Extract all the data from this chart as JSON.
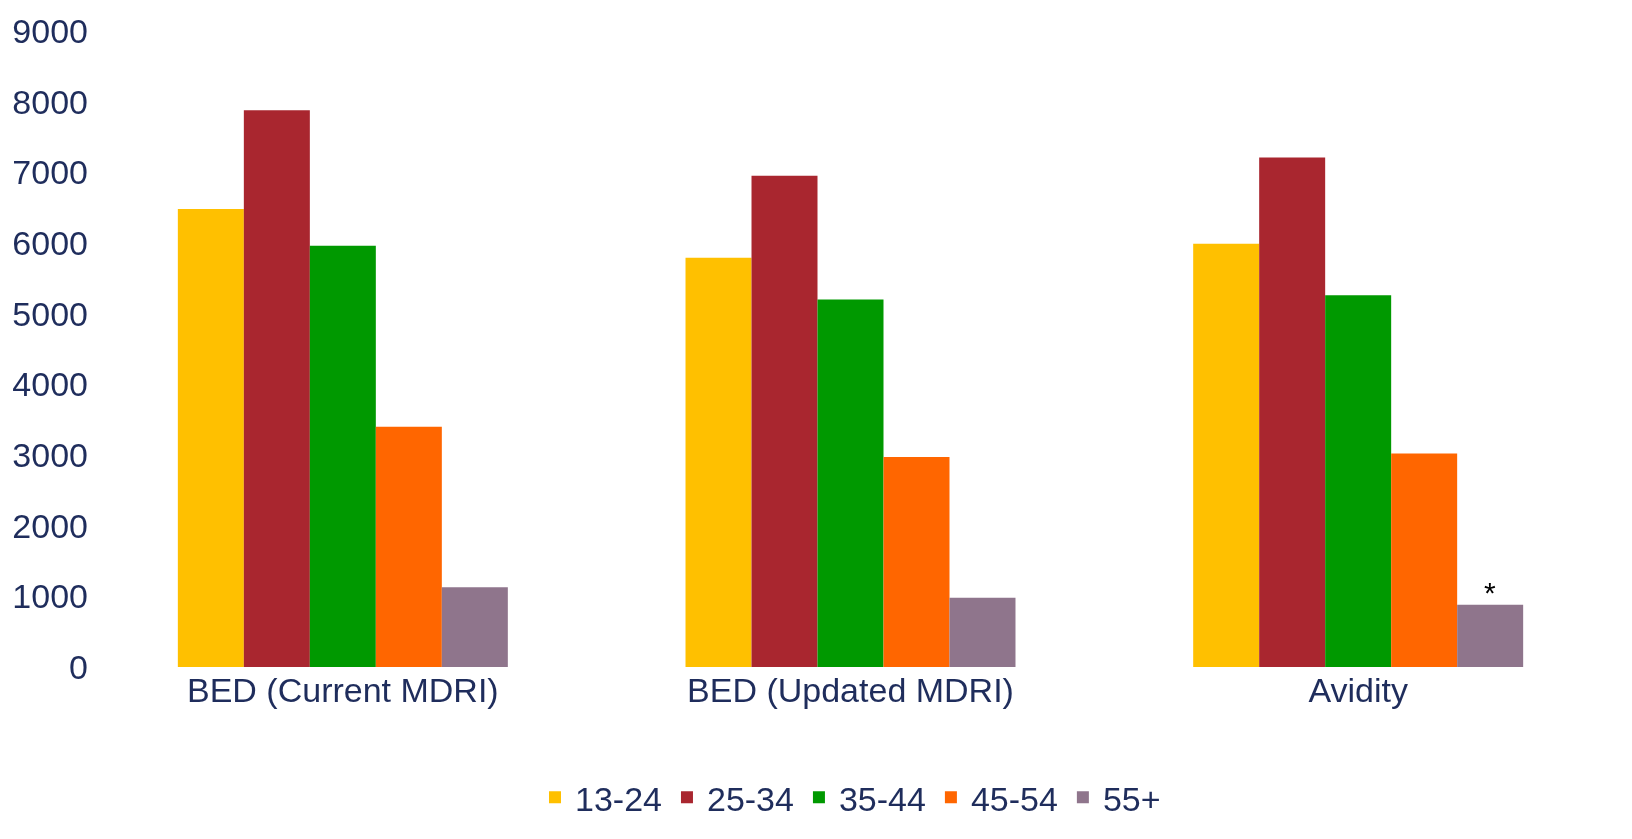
{
  "chart_data": {
    "type": "bar",
    "categories": [
      "BED (Current MDRI)",
      "BED (Updated MDRI)",
      "Avidity"
    ],
    "series": [
      {
        "name": "13-24",
        "color": "#ffc000",
        "values": [
          6480,
          5790,
          5990
        ]
      },
      {
        "name": "25-34",
        "color": "#a9262f",
        "values": [
          7880,
          6950,
          7210
        ]
      },
      {
        "name": "35-44",
        "color": "#009900",
        "values": [
          5960,
          5200,
          5260
        ]
      },
      {
        "name": "45-54",
        "color": "#ff6600",
        "values": [
          3400,
          2970,
          3020
        ]
      },
      {
        "name": "55+",
        "color": "#8f758c",
        "values": [
          1130,
          980,
          880
        ]
      }
    ],
    "ylim": [
      0,
      9000
    ],
    "yticks": [
      0,
      1000,
      2000,
      3000,
      4000,
      5000,
      6000,
      7000,
      8000,
      9000
    ],
    "legend": "bottom",
    "annotations": [
      "*"
    ]
  }
}
